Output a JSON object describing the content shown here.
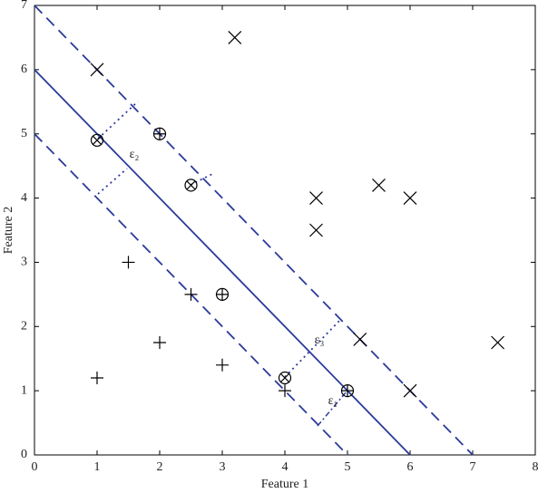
{
  "chart_data": {
    "type": "scatter",
    "xlabel": "Feature 1",
    "ylabel": "Feature 2",
    "xlim": [
      0,
      8
    ],
    "ylim": [
      0,
      7
    ],
    "xticks": [
      0,
      1,
      2,
      3,
      4,
      5,
      6,
      7,
      8
    ],
    "yticks": [
      0,
      1,
      2,
      3,
      4,
      5,
      6,
      7
    ],
    "series": [
      {
        "marker": "x",
        "color": "#000000",
        "x": [
          1,
          3.2,
          4.5,
          4.5,
          5.5,
          6,
          5.2,
          6,
          7.4
        ],
        "y": [
          6,
          6.5,
          4,
          3.5,
          4.2,
          4,
          1.8,
          1,
          1.75
        ]
      },
      {
        "marker": "+",
        "color": "#000000",
        "x": [
          1.5,
          2.5,
          1,
          2,
          3,
          4
        ],
        "y": [
          3,
          2.5,
          1.2,
          1.75,
          1.4,
          1
        ]
      },
      {
        "marker": "circle-plus",
        "color": "#000000",
        "x": [
          2,
          3,
          5
        ],
        "y": [
          5,
          2.5,
          1
        ]
      },
      {
        "marker": "circle-x",
        "color": "#000000",
        "x": [
          1,
          2.5,
          4
        ],
        "y": [
          4.9,
          4.2,
          1.2
        ]
      }
    ],
    "lines": [
      {
        "style": "solid",
        "color": "#2b3a9a",
        "x": [
          0,
          6
        ],
        "y": [
          6,
          0
        ]
      },
      {
        "style": "dashed",
        "color": "#2b3a9a",
        "x": [
          0,
          7
        ],
        "y": [
          7,
          0
        ]
      },
      {
        "style": "dashed",
        "color": "#2b3a9a",
        "x": [
          0,
          5
        ],
        "y": [
          5,
          0
        ]
      }
    ],
    "annotations": [
      "ε₂",
      "ε₃",
      "ε₁"
    ]
  }
}
